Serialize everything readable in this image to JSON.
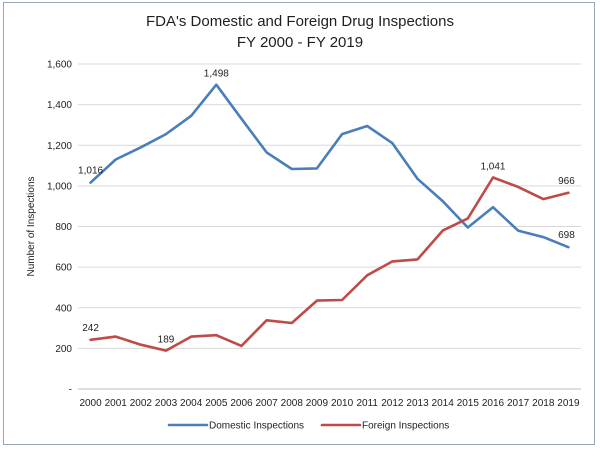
{
  "chart_data": {
    "type": "line",
    "title": "FDA's Domestic and Foreign Drug Inspections",
    "subtitle": "FY 2000 - FY 2019",
    "xlabel": "",
    "ylabel": "Number of Inspections",
    "ylim": [
      0,
      1600
    ],
    "y_ticks": [
      0,
      200,
      400,
      600,
      800,
      1000,
      1200,
      1400,
      1600
    ],
    "y_tick_labels": [
      "-",
      "200",
      "400",
      "600",
      "800",
      "1,000",
      "1,200",
      "1,400",
      "1,600"
    ],
    "grid": true,
    "legend_position": "bottom",
    "categories": [
      "2000",
      "2001",
      "2002",
      "2003",
      "2004",
      "2005",
      "2006",
      "2007",
      "2008",
      "2009",
      "2010",
      "2011",
      "2012",
      "2013",
      "2014",
      "2015",
      "2016",
      "2017",
      "2018",
      "2019"
    ],
    "series": [
      {
        "name": "Domestic Inspections",
        "color": "#4a7ebb",
        "values": [
          1016,
          1130,
          1190,
          1255,
          1345,
          1498,
          1330,
          1165,
          1083,
          1086,
          1255,
          1295,
          1210,
          1035,
          925,
          795,
          895,
          780,
          748,
          698
        ],
        "labels": [
          {
            "index": 0,
            "text": "1,016"
          },
          {
            "index": 5,
            "text": "1,498"
          },
          {
            "index": 19,
            "text": "698"
          }
        ]
      },
      {
        "name": "Foreign Inspections",
        "color": "#be4b48",
        "values": [
          242,
          258,
          218,
          189,
          258,
          265,
          212,
          338,
          325,
          435,
          438,
          560,
          628,
          638,
          780,
          840,
          1041,
          995,
          935,
          966
        ],
        "labels": [
          {
            "index": 0,
            "text": "242"
          },
          {
            "index": 3,
            "text": "189"
          },
          {
            "index": 16,
            "text": "1,041"
          },
          {
            "index": 19,
            "text": "966"
          }
        ]
      }
    ]
  }
}
